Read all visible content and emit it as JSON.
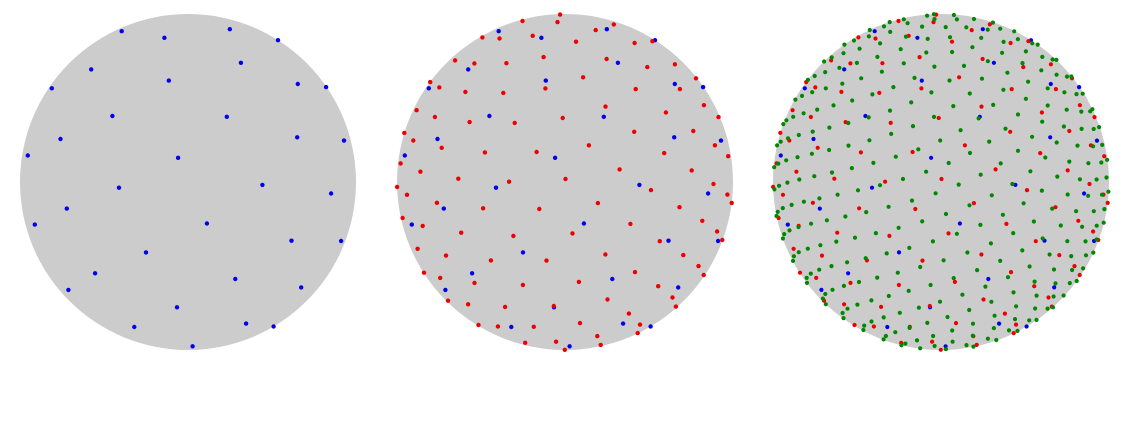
{
  "figure": {
    "description_type": "three spheres with refinement points",
    "sphere_fill": "#cccccc",
    "background": "#ffffff",
    "point_colors": {
      "level_1": "#0000ee",
      "level_2": "#ee0000",
      "level_3": "#008800"
    },
    "panels": [
      {
        "name": "sphere-level-1",
        "levels_shown": 1,
        "points_per_level": [
          72
        ]
      },
      {
        "name": "sphere-level-2",
        "levels_shown": 2,
        "points_per_level": [
          72,
          216
        ]
      },
      {
        "name": "sphere-level-3",
        "levels_shown": 3,
        "points_per_level": [
          72,
          216,
          612
        ]
      }
    ]
  }
}
